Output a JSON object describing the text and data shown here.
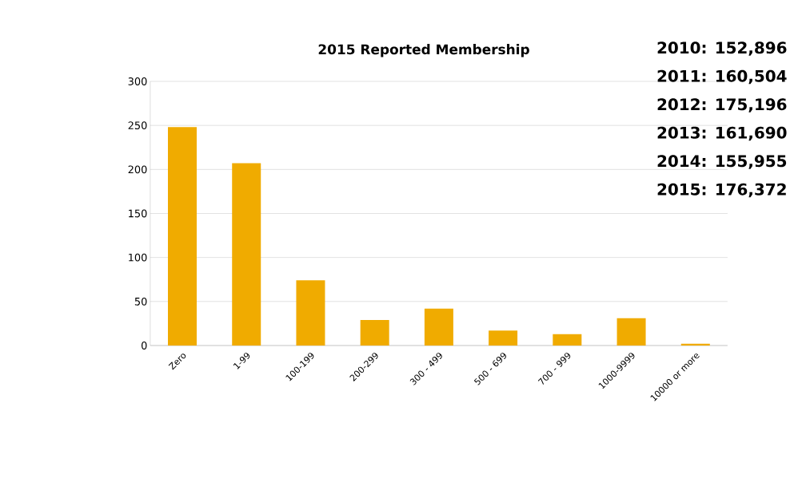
{
  "chart_data": {
    "type": "bar",
    "title": "2015 Reported Membership",
    "categories": [
      "Zero",
      "1-99",
      "100-199",
      "200-299",
      "300 - 499",
      "500 - 699",
      "700 - 999",
      "1000-9999",
      "10000 or more"
    ],
    "values": [
      248,
      207,
      74,
      29,
      42,
      17,
      13,
      31,
      2
    ],
    "color": "#f0ab00",
    "ylim": [
      0,
      300
    ],
    "yticks": [
      0,
      50,
      100,
      150,
      200,
      250,
      300
    ],
    "grid": "y",
    "annotations": [
      "2010:  152,896",
      "2011:  160,504",
      "2012:  175,196",
      "2013:  161,690",
      "2014:  155,955",
      "2015:  176,372"
    ]
  }
}
